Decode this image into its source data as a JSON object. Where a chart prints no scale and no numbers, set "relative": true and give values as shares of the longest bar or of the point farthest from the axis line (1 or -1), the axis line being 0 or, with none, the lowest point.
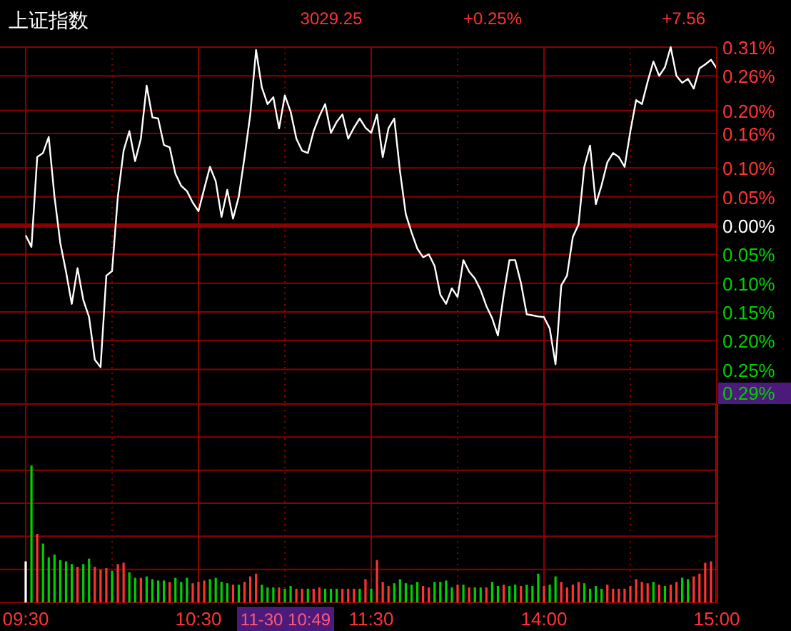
{
  "chart_data": [
    {
      "type": "line",
      "title": "上证指数",
      "annotations": [
        "3029.25",
        "+0.25%",
        "+7.56",
        "0.29%"
      ],
      "categories": [
        null,
        null,
        null,
        null,
        null,
        null,
        null,
        null,
        null,
        null,
        null,
        null,
        null,
        null,
        null,
        null,
        null,
        null,
        null,
        null,
        null,
        null,
        null,
        null,
        null,
        null,
        null,
        null,
        null,
        null,
        null,
        null,
        null,
        null,
        null,
        null,
        null,
        null,
        null,
        null,
        null,
        null,
        null,
        null,
        null,
        null,
        null,
        null,
        null,
        null,
        null,
        null,
        null,
        null,
        null,
        null,
        null,
        null,
        null,
        null,
        null,
        null,
        null,
        null,
        null,
        null,
        null,
        null,
        null,
        null,
        null,
        null,
        null,
        null,
        null,
        null,
        null,
        null,
        null,
        null,
        null,
        null,
        null,
        null,
        null,
        null,
        null,
        null,
        null,
        null,
        null,
        null,
        null,
        null,
        null,
        null,
        null,
        null,
        null,
        null,
        null,
        null,
        null,
        null,
        null,
        null,
        null,
        null,
        null,
        null,
        null,
        null,
        null,
        null,
        null,
        null,
        null,
        null,
        null,
        null,
        null
      ],
      "ylim": [
        -0.31,
        0.31
      ],
      "yticks": [
        {
          "value": 0.31,
          "label": "0.31%"
        },
        {
          "value": 0.26,
          "label": "0.26%"
        },
        {
          "value": 0.2,
          "label": "0.20%"
        },
        {
          "value": 0.16,
          "label": "0.16%"
        },
        {
          "value": 0.1,
          "label": "0.10%"
        },
        {
          "value": 0.05,
          "label": "0.05%"
        },
        {
          "value": 0,
          "label": "0.00%"
        },
        {
          "value": -0.05,
          "label": "0.05%"
        },
        {
          "value": -0.1,
          "label": "0.10%"
        },
        {
          "value": -0.15,
          "label": "0.15%"
        },
        {
          "value": -0.2,
          "label": "0.20%"
        },
        {
          "value": -0.25,
          "label": "0.25%"
        },
        {
          "value": -0.31,
          "label": null
        }
      ],
      "tick_labels": "y",
      "grid": true,
      "line_style": "solid",
      "ref_lines": [
        {
          "axis": "y",
          "value": 0,
          "label": null,
          "color": "#8b0000"
        }
      ],
      "series": [
        {
          "color": "#ffffff",
          "values": [
            -0.017,
            -0.037,
            0.119,
            0.126,
            0.154,
            0.05,
            -0.03,
            -0.08,
            -0.136,
            -0.074,
            -0.129,
            -0.159,
            -0.233,
            -0.246,
            -0.087,
            -0.079,
            0.05,
            0.13,
            0.164,
            0.112,
            0.151,
            0.243,
            0.188,
            0.186,
            0.14,
            0.136,
            0.09,
            0.069,
            0.06,
            0.04,
            0.025,
            0.064,
            0.102,
            0.077,
            0.015,
            0.062,
            0.012,
            0.05,
            0.119,
            0.193,
            0.305,
            0.24,
            0.211,
            0.223,
            0.169,
            0.226,
            0.198,
            0.151,
            0.13,
            0.126,
            0.164,
            0.19,
            0.211,
            0.161,
            0.18,
            0.193,
            0.151,
            0.17,
            0.186,
            0.17,
            0.161,
            0.193,
            0.119,
            0.169,
            0.186,
            0.094,
            0.02,
            -0.012,
            -0.04,
            -0.055,
            -0.05,
            -0.07,
            -0.12,
            -0.136,
            -0.109,
            -0.124,
            -0.06,
            -0.08,
            -0.092,
            -0.112,
            -0.14,
            -0.161,
            -0.191,
            -0.12,
            -0.06,
            -0.06,
            -0.1,
            -0.154,
            -0.156,
            -0.158,
            -0.159,
            -0.179,
            -0.241,
            -0.104,
            -0.087,
            -0.02,
            0.002,
            0.102,
            0.139,
            0.037,
            0.07,
            0.11,
            0.126,
            0.119,
            0.102,
            0.164,
            0.218,
            0.211,
            0.25,
            0.285,
            0.26,
            0.275,
            0.31,
            0.26,
            0.248,
            0.255,
            0.238,
            0.273,
            0.28,
            0.288,
            0.273
          ]
        }
      ]
    },
    {
      "type": "bar",
      "relative": true,
      "annotations": [
        "11-30 10:49"
      ],
      "tick_labels": "x",
      "grid": true,
      "categories": [
        "09:30",
        null,
        null,
        null,
        null,
        null,
        null,
        null,
        null,
        null,
        null,
        null,
        null,
        null,
        null,
        null,
        null,
        null,
        null,
        null,
        null,
        null,
        null,
        null,
        null,
        null,
        null,
        null,
        null,
        null,
        "10:30",
        null,
        null,
        null,
        null,
        null,
        null,
        null,
        null,
        null,
        null,
        null,
        null,
        null,
        null,
        null,
        null,
        null,
        null,
        null,
        null,
        null,
        null,
        null,
        null,
        null,
        null,
        null,
        null,
        null,
        "11:30",
        null,
        null,
        null,
        null,
        null,
        null,
        null,
        null,
        null,
        null,
        null,
        null,
        null,
        null,
        null,
        null,
        null,
        null,
        null,
        null,
        null,
        null,
        null,
        null,
        null,
        null,
        null,
        null,
        null,
        "14:00",
        null,
        null,
        null,
        null,
        null,
        null,
        null,
        null,
        null,
        null,
        null,
        null,
        null,
        null,
        null,
        null,
        null,
        null,
        null,
        null,
        null,
        null,
        null,
        null,
        null,
        null,
        null,
        null,
        null,
        "15:00"
      ],
      "values": [
        0.3,
        1,
        0.5,
        0.43,
        0.33,
        0.35,
        0.31,
        0.3,
        0.28,
        0.26,
        0.28,
        0.32,
        0.26,
        0.24,
        0.25,
        0.23,
        0.28,
        0.29,
        0.22,
        0.18,
        0.18,
        0.19,
        0.17,
        0.16,
        0.16,
        0.15,
        0.18,
        0.15,
        0.18,
        0.14,
        0.15,
        0.16,
        0.17,
        0.18,
        0.15,
        0.14,
        0.13,
        0.13,
        0.15,
        0.19,
        0.21,
        0.13,
        0.11,
        0.11,
        0.11,
        0.1,
        0.12,
        0.1,
        0.1,
        0.1,
        0.1,
        0.11,
        0.1,
        0.1,
        0.1,
        0.1,
        0.1,
        0.1,
        0.1,
        0.17,
        0.1,
        0.31,
        0.15,
        0.12,
        0.14,
        0.17,
        0.14,
        0.13,
        0.15,
        0.12,
        0.11,
        0.15,
        0.15,
        0.16,
        0.11,
        0.13,
        0.13,
        0.11,
        0.11,
        0.11,
        0.11,
        0.15,
        0.12,
        0.13,
        0.12,
        0.13,
        0.12,
        0.13,
        0.12,
        0.21,
        0.12,
        0.13,
        0.19,
        0.15,
        0.11,
        0.13,
        0.15,
        0.14,
        0.1,
        0.12,
        0.1,
        0.13,
        0.1,
        0.1,
        0.1,
        0.12,
        0.17,
        0.15,
        0.14,
        0.15,
        0.13,
        0.12,
        0.13,
        0.15,
        0.18,
        0.17,
        0.19,
        0.21,
        0.29,
        0.3,
        null
      ],
      "colors": [
        "#ffffff",
        "#00d000",
        "#ff3232",
        "#00d000",
        "#00d000",
        "#00d000",
        "#00d000",
        "#00d000",
        "#00d000",
        "#ff3232",
        "#00d000",
        "#00d000",
        "#ff3232",
        "#ff3232",
        "#ff3232",
        "#00d000",
        "#ff3232",
        "#ff3232",
        "#00d000",
        "#00d000",
        "#ff3232",
        "#00d000",
        "#00d000",
        "#00d000",
        "#00d000",
        "#ff3232",
        "#00d000",
        "#00d000",
        "#00d000",
        "#ff3232",
        "#ff3232",
        "#ff3232",
        "#00d000",
        "#00d000",
        "#00d000",
        "#00d000",
        "#ff3232",
        "#00d000",
        "#ff3232",
        "#ff3232",
        "#ff3232",
        "#00d000",
        "#00d000",
        "#00d000",
        "#ff3232",
        "#00d000",
        "#00d000",
        "#ff3232",
        "#ff3232",
        "#00d000",
        "#ff3232",
        "#ff3232",
        "#00d000",
        "#00d000",
        "#00d000",
        "#ff3232",
        "#ff3232",
        "#ff3232",
        "#00d000",
        "#ff3232",
        "#00d000",
        "#ff3232",
        "#ff3232",
        "#ff3232",
        "#00d000",
        "#00d000",
        "#00d000",
        "#00d000",
        "#00d000",
        "#ff3232",
        "#ff3232",
        "#00d000",
        "#00d000",
        "#00d000",
        "#00d000",
        "#ff3232",
        "#00d000",
        "#ff3232",
        "#00d000",
        "#00d000",
        "#ff3232",
        "#00d000",
        "#00d000",
        "#ff3232",
        "#00d000",
        "#00d000",
        "#ff3232",
        "#00d000",
        "#00d000",
        "#00d000",
        "#ff3232",
        "#00d000",
        "#00d000",
        "#ff3232",
        "#ff3232",
        "#ff3232",
        "#ff3232",
        "#00d000",
        "#00d000",
        "#00d000",
        "#00d000",
        "#ff3232",
        "#ff3232",
        "#ff3232",
        "#ff3232",
        "#ff3232",
        "#ff3232",
        "#ff3232",
        "#ff3232",
        "#00d000",
        "#ff3232",
        "#00d000",
        "#ff3232",
        "#ff3232",
        "#00d000",
        "#00d000",
        "#ff3232",
        "#ff3232",
        "#ff3232",
        "#ff3232",
        "#00c800"
      ]
    }
  ]
}
